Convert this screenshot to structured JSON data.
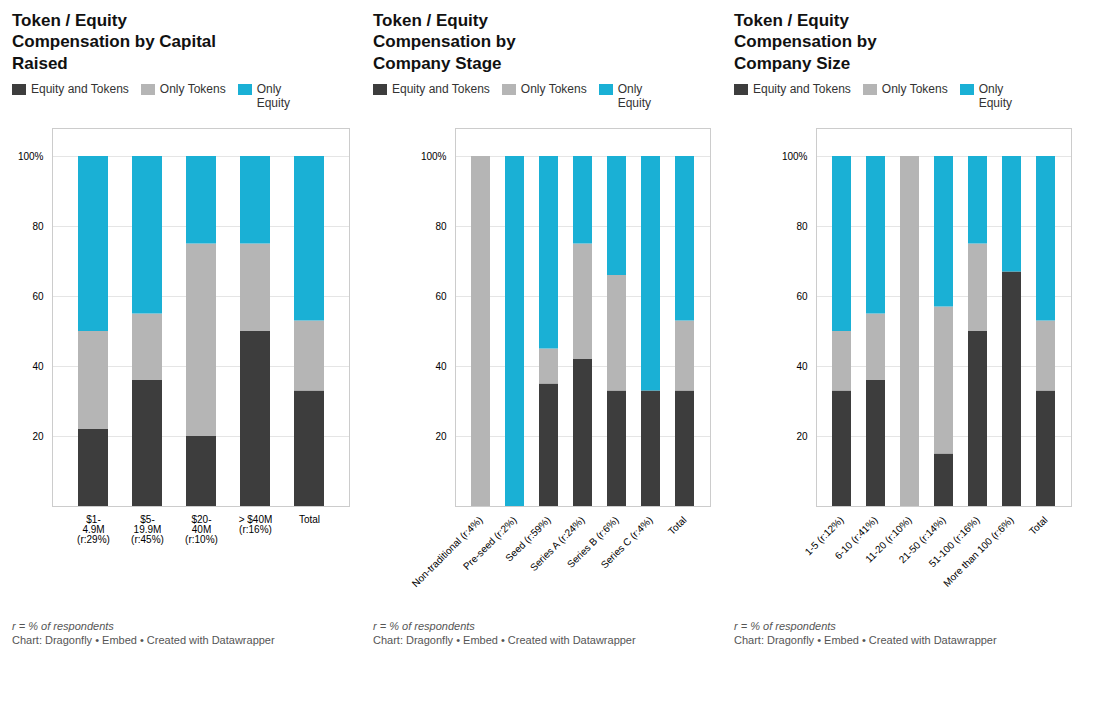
{
  "chart_data": [
    {
      "type": "bar",
      "stacked": true,
      "grid": true,
      "legend": "top",
      "title": "Token / Equity\nCompensation by Capital\nRaised",
      "categories": [
        "$1-\n4.9M\n(r:29%)",
        "$5-\n19.9M\n(r:45%)",
        "$20-\n40M\n(r:10%)",
        "> $40M\n(r:16%)",
        "Total"
      ],
      "series": [
        {
          "name": "Equity and Tokens",
          "color": "#3d3d3d",
          "values": [
            22,
            36,
            20,
            50,
            33
          ]
        },
        {
          "name": "Only Tokens",
          "color": "#b5b5b5",
          "values": [
            28,
            19,
            55,
            25,
            20
          ]
        },
        {
          "name": "Only\nEquity",
          "color": "#1ab0d5",
          "values": [
            50,
            45,
            25,
            25,
            47
          ]
        }
      ],
      "ylim": [
        0,
        108
      ],
      "yticks": [
        20,
        40,
        60,
        80,
        {
          "value": 100,
          "label": "100%"
        }
      ],
      "annotations": [
        "r = % of respondents",
        "Chart: Dragonfly • Embed • Created with Datawrapper"
      ]
    },
    {
      "type": "bar",
      "stacked": true,
      "grid": true,
      "legend": "top",
      "title": "Token / Equity\nCompensation by\nCompany Stage",
      "categories": [
        "Non-traditional (r:4%)",
        "Pre-seed (r:2%)",
        "Seed (r:59%)",
        "Series A (r:24%)",
        "Series B (r:6%)",
        "Series C (r:4%)",
        "Total"
      ],
      "series": [
        {
          "name": "Equity and Tokens",
          "color": "#3d3d3d",
          "values": [
            0,
            0,
            35,
            42,
            33,
            33,
            33
          ]
        },
        {
          "name": "Only Tokens",
          "color": "#b5b5b5",
          "values": [
            100,
            0,
            10,
            33,
            33,
            0,
            20
          ]
        },
        {
          "name": "Only\nEquity",
          "color": "#1ab0d5",
          "values": [
            0,
            100,
            55,
            25,
            34,
            67,
            47
          ]
        }
      ],
      "ylim": [
        0,
        108
      ],
      "yticks": [
        20,
        40,
        60,
        80,
        {
          "value": 100,
          "label": "100%"
        }
      ],
      "annotations": [
        "r = % of respondents",
        "Chart: Dragonfly • Embed • Created with Datawrapper"
      ]
    },
    {
      "type": "bar",
      "stacked": true,
      "grid": true,
      "legend": "top",
      "title": "Token / Equity\nCompensation by\nCompany Size",
      "categories": [
        "1-5 (r:12%)",
        "6-10 (r:41%)",
        "11-20 (r:10%)",
        "21-50 (r:14%)",
        "51-100 (r:16%)",
        "More than 100 (r:6%)",
        "Total"
      ],
      "series": [
        {
          "name": "Equity and Tokens",
          "color": "#3d3d3d",
          "values": [
            33,
            36,
            0,
            15,
            50,
            67,
            33
          ]
        },
        {
          "name": "Only Tokens",
          "color": "#b5b5b5",
          "values": [
            17,
            19,
            100,
            42,
            25,
            0,
            20
          ]
        },
        {
          "name": "Only\nEquity",
          "color": "#1ab0d5",
          "values": [
            50,
            45,
            0,
            43,
            25,
            33,
            47
          ]
        }
      ],
      "ylim": [
        0,
        108
      ],
      "yticks": [
        20,
        40,
        60,
        80,
        {
          "value": 100,
          "label": "100%"
        }
      ],
      "annotations": [
        "r = % of respondents",
        "Chart: Dragonfly • Embed • Created with Datawrapper"
      ]
    }
  ]
}
